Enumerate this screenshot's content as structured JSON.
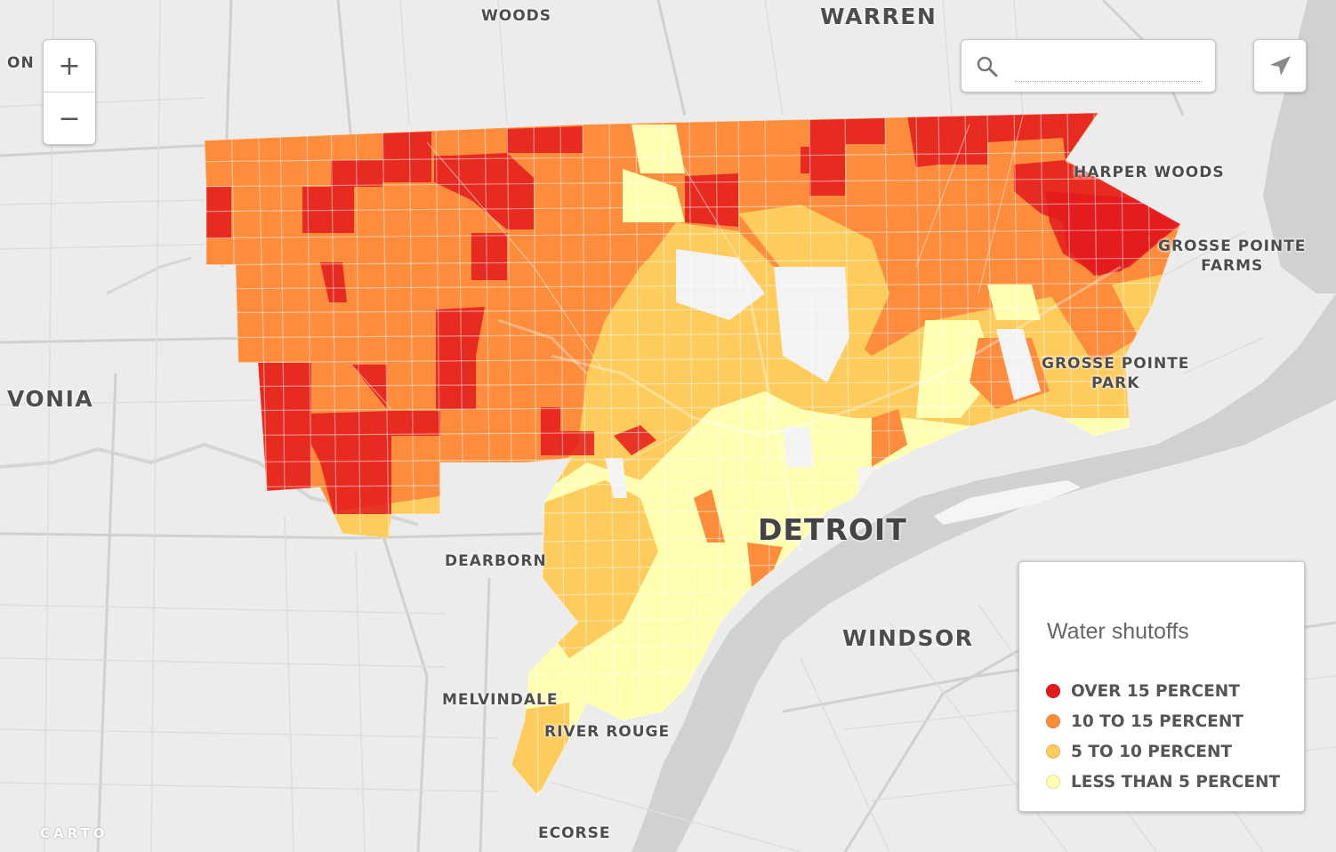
{
  "colors": {
    "over15": "#e31a1c",
    "r10to15": "#fd8d3c",
    "r5to10": "#fecc5c",
    "under5": "#ffffb2",
    "water": "#d1d1d1",
    "land": "#ececec"
  },
  "places": {
    "woods": "WOODS",
    "warren": "WARREN",
    "on": "ON",
    "harper_woods": "HARPER WOODS",
    "grosse_pointe_farms_1": "GROSSE POINTE",
    "grosse_pointe_farms_2": "FARMS",
    "vonia": "VONIA",
    "grosse_pointe_park_1": "GROSSE POINTE",
    "grosse_pointe_park_2": "PARK",
    "detroit": "DETROIT",
    "dearborn": "DEARBORN",
    "windsor": "WINDSOR",
    "melvindale": "MELVINDALE",
    "river_rouge": "RIVER ROUGE",
    "ecorse": "ECORSE"
  },
  "controls": {
    "zoom_in": "+",
    "zoom_out": "−",
    "search_value": "",
    "search_icon": "search-icon",
    "locate_icon": "location-arrow-icon"
  },
  "legend": {
    "title": "Water shutoffs",
    "items": [
      {
        "label": "OVER 15 PERCENT",
        "color": "#e31a1c"
      },
      {
        "label": "10 TO 15 PERCENT",
        "color": "#fd8d3c"
      },
      {
        "label": "5 TO 10 PERCENT",
        "color": "#fecc5c"
      },
      {
        "label": "LESS THAN 5 PERCENT",
        "color": "#ffffb2"
      }
    ]
  },
  "attribution": "CARTO"
}
